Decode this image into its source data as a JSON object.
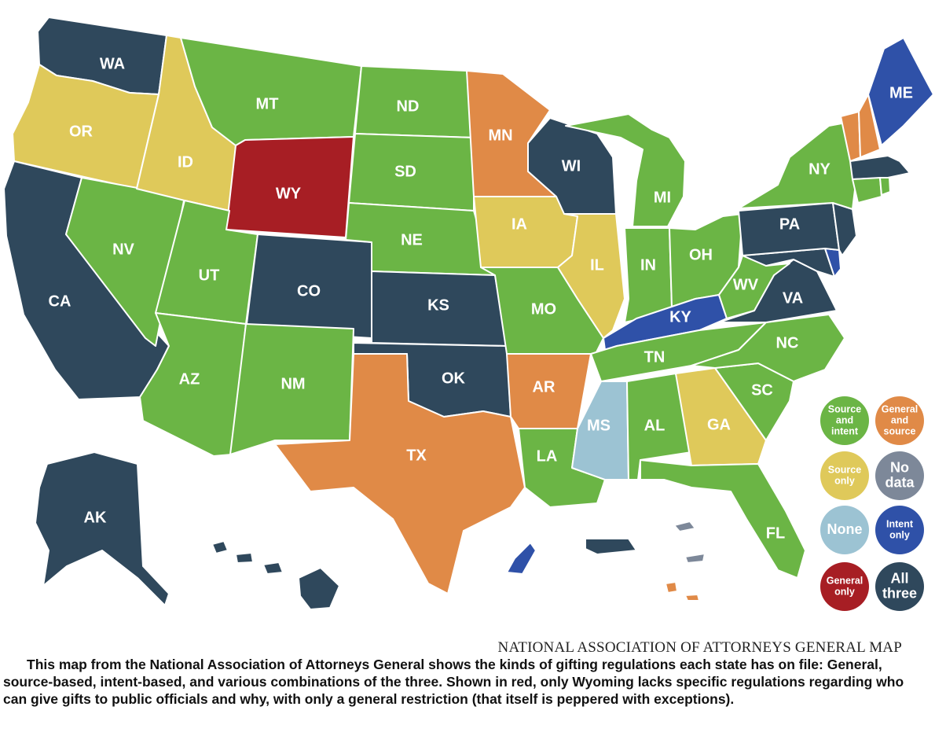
{
  "colors": {
    "source_and_intent": "#6bb545",
    "general_and_source": "#e08a47",
    "source_only": "#dfc95a",
    "no_data": "#7d8899",
    "none": "#9cc3d3",
    "intent_only": "#2f51a8",
    "general_only": "#a71e24",
    "all_three": "#2f485c"
  },
  "states": [
    {
      "abbr": "WA",
      "category": "all_three"
    },
    {
      "abbr": "OR",
      "category": "source_only"
    },
    {
      "abbr": "CA",
      "category": "all_three"
    },
    {
      "abbr": "NV",
      "category": "source_and_intent"
    },
    {
      "abbr": "ID",
      "category": "source_only"
    },
    {
      "abbr": "MT",
      "category": "source_and_intent"
    },
    {
      "abbr": "WY",
      "category": "general_only"
    },
    {
      "abbr": "UT",
      "category": "source_and_intent"
    },
    {
      "abbr": "AZ",
      "category": "source_and_intent"
    },
    {
      "abbr": "CO",
      "category": "all_three"
    },
    {
      "abbr": "NM",
      "category": "source_and_intent"
    },
    {
      "abbr": "ND",
      "category": "source_and_intent"
    },
    {
      "abbr": "SD",
      "category": "source_and_intent"
    },
    {
      "abbr": "NE",
      "category": "source_and_intent"
    },
    {
      "abbr": "KS",
      "category": "all_three"
    },
    {
      "abbr": "OK",
      "category": "all_three"
    },
    {
      "abbr": "TX",
      "category": "general_and_source"
    },
    {
      "abbr": "MN",
      "category": "general_and_source"
    },
    {
      "abbr": "IA",
      "category": "source_only"
    },
    {
      "abbr": "MO",
      "category": "source_and_intent"
    },
    {
      "abbr": "AR",
      "category": "general_and_source"
    },
    {
      "abbr": "LA",
      "category": "source_and_intent"
    },
    {
      "abbr": "WI",
      "category": "all_three"
    },
    {
      "abbr": "IL",
      "category": "source_only"
    },
    {
      "abbr": "MI",
      "category": "source_and_intent"
    },
    {
      "abbr": "IN",
      "category": "source_and_intent"
    },
    {
      "abbr": "OH",
      "category": "source_and_intent"
    },
    {
      "abbr": "KY",
      "category": "intent_only"
    },
    {
      "abbr": "TN",
      "category": "source_and_intent"
    },
    {
      "abbr": "MS",
      "category": "none"
    },
    {
      "abbr": "AL",
      "category": "source_and_intent"
    },
    {
      "abbr": "GA",
      "category": "source_only"
    },
    {
      "abbr": "FL",
      "category": "source_and_intent"
    },
    {
      "abbr": "SC",
      "category": "source_and_intent"
    },
    {
      "abbr": "NC",
      "category": "source_and_intent"
    },
    {
      "abbr": "VA",
      "category": "all_three"
    },
    {
      "abbr": "WV",
      "category": "source_and_intent"
    },
    {
      "abbr": "PA",
      "category": "all_three"
    },
    {
      "abbr": "NY",
      "category": "source_and_intent"
    },
    {
      "abbr": "ME",
      "category": "intent_only"
    },
    {
      "abbr": "AK",
      "category": "all_three"
    }
  ],
  "legend": [
    {
      "key": "source_and_intent",
      "lines": [
        "Source",
        "and",
        "intent"
      ]
    },
    {
      "key": "general_and_source",
      "lines": [
        "General",
        "and",
        "source"
      ]
    },
    {
      "key": "source_only",
      "lines": [
        "Source",
        "only"
      ]
    },
    {
      "key": "no_data",
      "lines": [
        "No",
        "data"
      ]
    },
    {
      "key": "none",
      "lines": [
        "None"
      ]
    },
    {
      "key": "intent_only",
      "lines": [
        "Intent",
        "only"
      ]
    },
    {
      "key": "general_only",
      "lines": [
        "General",
        "only"
      ]
    },
    {
      "key": "all_three",
      "lines": [
        "All",
        "three"
      ]
    }
  ],
  "credit": "NATIONAL ASSOCIATION OF ATTORNEYS GENERAL MAP",
  "caption": "This map from the National Association of Attorneys General shows the kinds of gifting regulations each state has on file: General, source-based, intent-based, and various combinations of the three. Shown in red, only Wyoming lacks specific regulations regarding who can give gifts to public officials and why, with only a general restriction (that itself is peppered with exceptions)."
}
